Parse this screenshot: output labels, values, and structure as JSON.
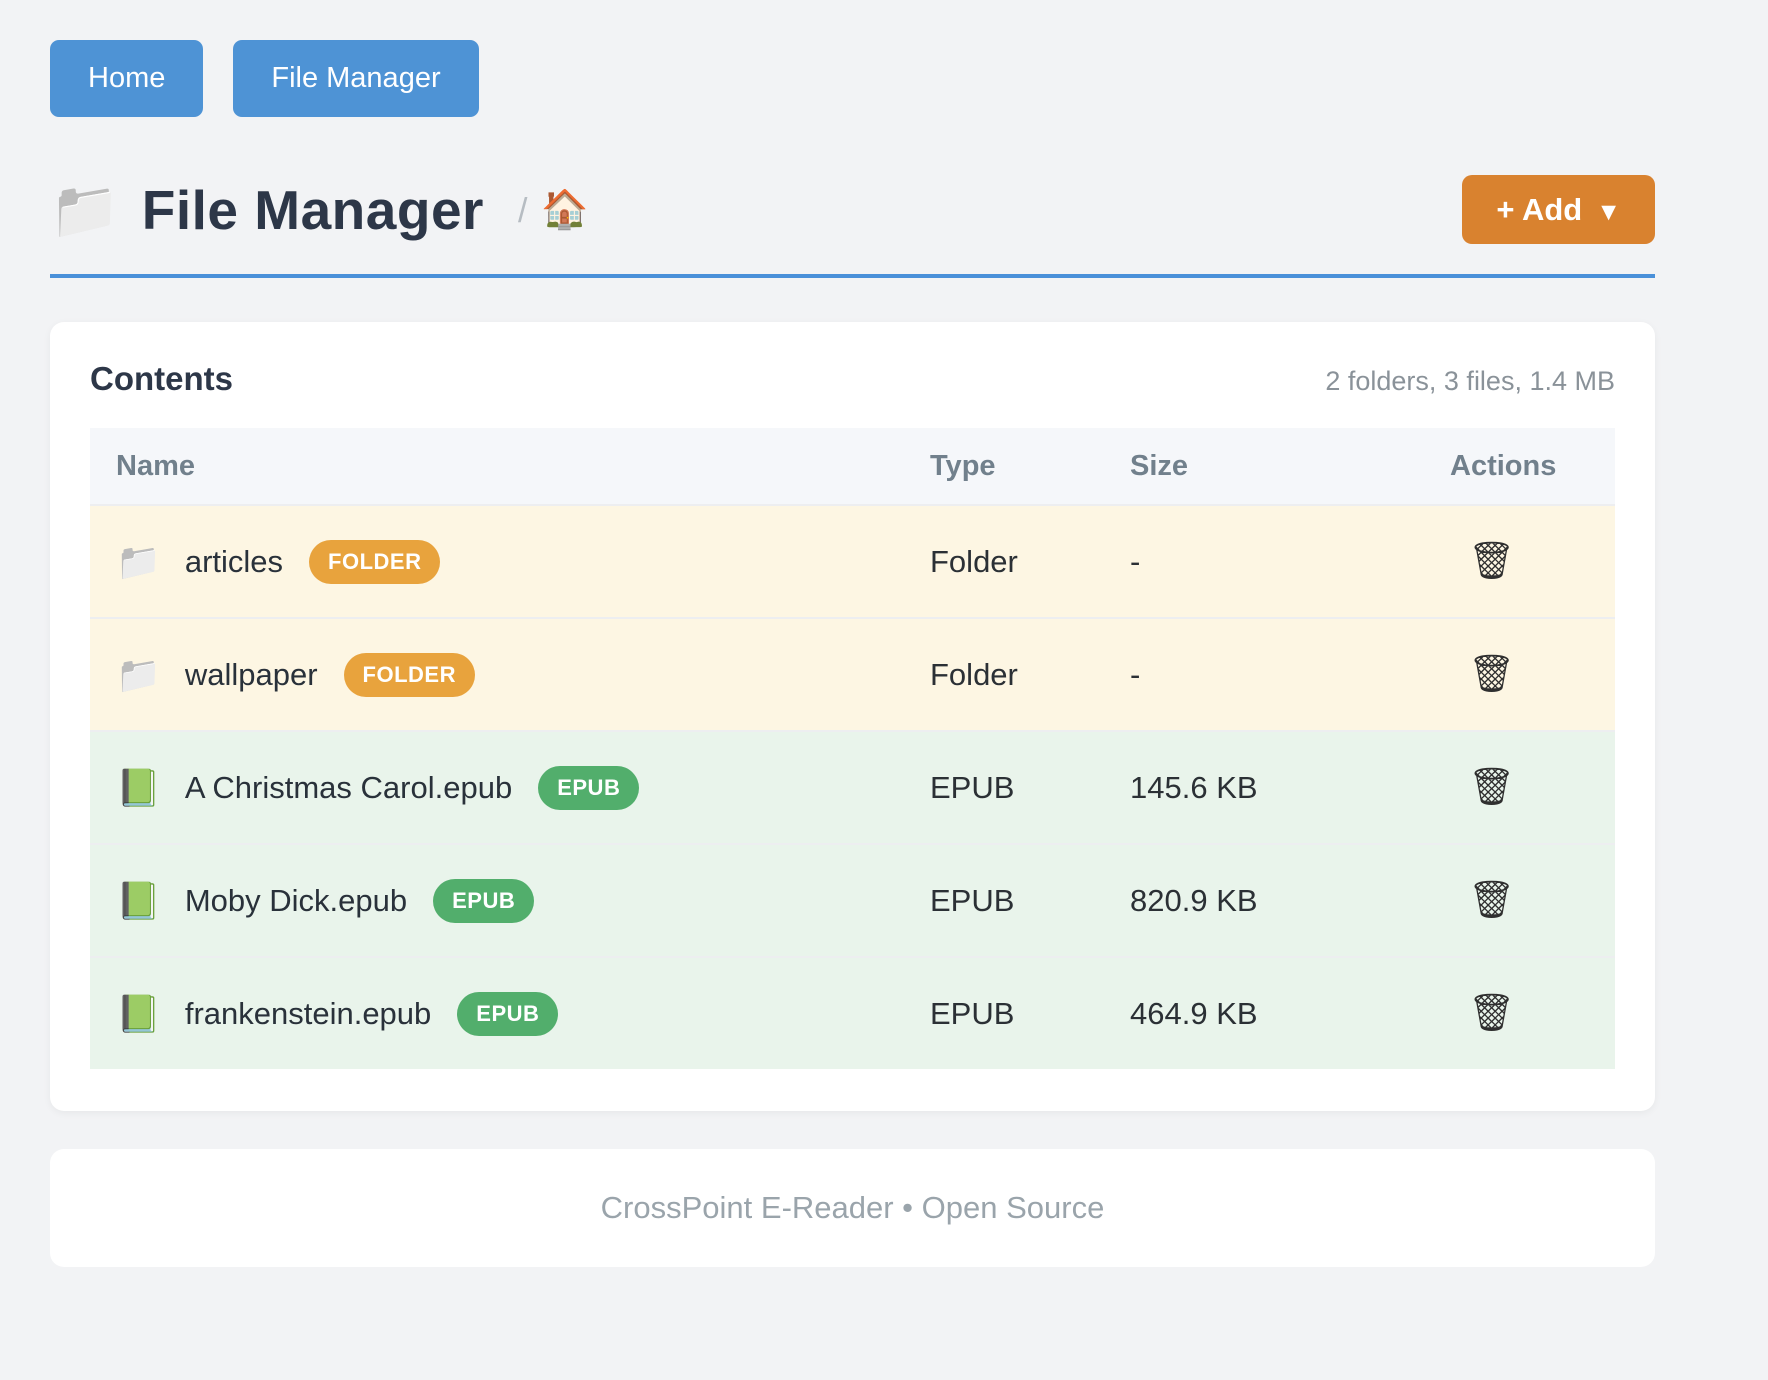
{
  "nav": {
    "home_label": "Home",
    "file_manager_label": "File Manager"
  },
  "header": {
    "title_icon": "📁",
    "title": "File Manager",
    "breadcrumb_separator": "/",
    "breadcrumb_home_icon": "🏠",
    "add_label": "+ Add",
    "add_caret": "▼"
  },
  "contents": {
    "heading": "Contents",
    "summary": "2 folders, 3 files, 1.4 MB",
    "table": {
      "headers": [
        "Name",
        "Type",
        "Size",
        "Actions"
      ],
      "trash_icon": "🗑",
      "rows": [
        {
          "icon": "📁",
          "name": "articles",
          "badge": "FOLDER",
          "type": "Folder",
          "size": "-"
        },
        {
          "icon": "📁",
          "name": "wallpaper",
          "badge": "FOLDER",
          "type": "Folder",
          "size": "-"
        },
        {
          "icon": "📗",
          "name": "A Christmas Carol.epub",
          "badge": "EPUB",
          "type": "EPUB",
          "size": "145.6 KB"
        },
        {
          "icon": "📗",
          "name": "Moby Dick.epub",
          "badge": "EPUB",
          "type": "EPUB",
          "size": "820.9 KB"
        },
        {
          "icon": "📗",
          "name": "frankenstein.epub",
          "badge": "EPUB",
          "type": "EPUB",
          "size": "464.9 KB"
        }
      ]
    }
  },
  "footer": {
    "text": "CrossPoint E-Reader • Open Source"
  },
  "colors": {
    "nav_button": "#4e93d5",
    "add_button": "#d9822f",
    "rule_blue": "#4a90d9",
    "folder_row_bg": "#fdf6e3",
    "file_row_bg": "#e9f4eb",
    "folder_badge": "#e8a33d",
    "epub_badge": "#52ae6c"
  }
}
